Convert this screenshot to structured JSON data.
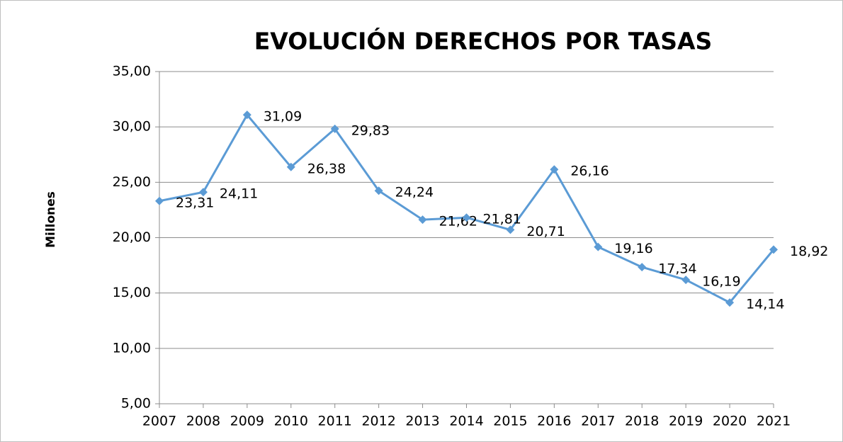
{
  "chart_data": {
    "type": "line",
    "title": "EVOLUCIÓN DERECHOS POR TASAS",
    "y_label": "Millones",
    "categories": [
      "2007",
      "2008",
      "2009",
      "2010",
      "2011",
      "2012",
      "2013",
      "2014",
      "2015",
      "2016",
      "2017",
      "2018",
      "2019",
      "2020",
      "2021"
    ],
    "series": [
      {
        "name": null,
        "color": "#5b9bd5",
        "values": [
          23.31,
          24.11,
          31.09,
          26.38,
          29.83,
          24.24,
          21.62,
          21.81,
          20.71,
          26.16,
          19.16,
          17.34,
          16.19,
          14.14,
          18.92
        ],
        "value_labels": [
          "23,31",
          "24,11",
          "31,09",
          "26,38",
          "29,83",
          "24,24",
          "21,62",
          "21,81",
          "20,71",
          "26,16",
          "19,16",
          "17,34",
          "16,19",
          "14,14",
          "18,92"
        ]
      }
    ],
    "ylim": [
      5,
      35
    ],
    "yticks": [
      {
        "value": 5,
        "label": "5,00"
      },
      {
        "value": 10,
        "label": "10,00"
      },
      {
        "value": 15,
        "label": "15,00"
      },
      {
        "value": 20,
        "label": "20,00"
      },
      {
        "value": 25,
        "label": "25,00"
      },
      {
        "value": 30,
        "label": "30,00"
      },
      {
        "value": 35,
        "label": "35,00"
      }
    ],
    "grid": true
  }
}
